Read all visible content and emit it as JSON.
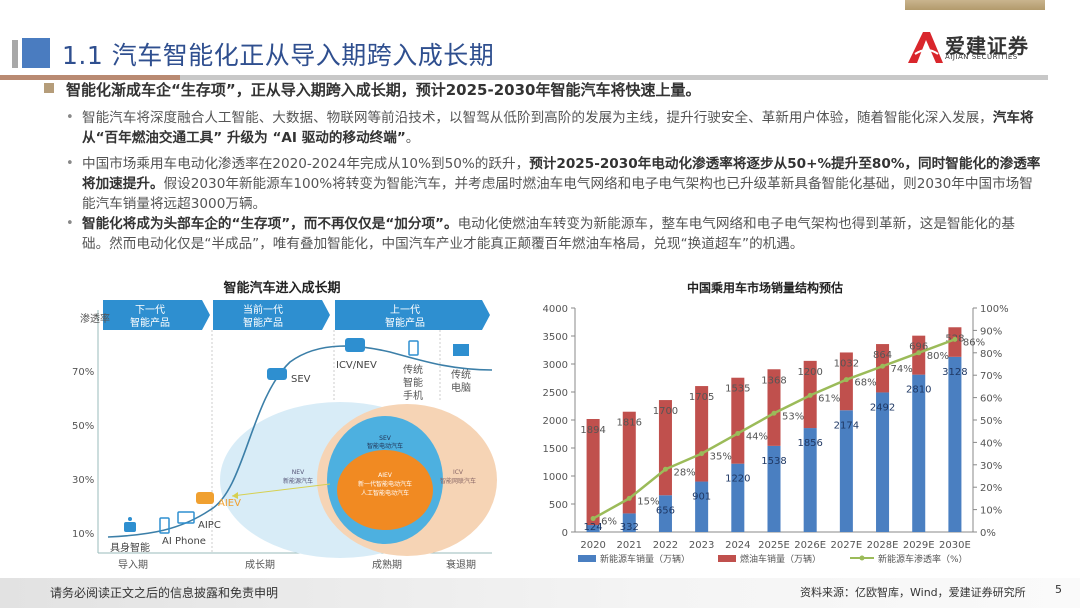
{
  "header": {
    "title": "1.1 汽车智能化正从导入期跨入成长期",
    "logo_cn": "爱建证券",
    "logo_en": "AIJIAN SECURITIES"
  },
  "colors": {
    "title": "#2f4f8f",
    "accent_blue": "#4a7cc0",
    "nev": "#4a7fc1",
    "fuel": "#c0504d",
    "rate": "#9bbb59",
    "gold": "#b59d7a"
  },
  "headline": "智能化渐成车企“生存项”，正从导入期跨入成长期，预计2025-2030年智能汽车将快速上量。",
  "bullets": [
    {
      "plain1": "智能汽车将深度融合人工智能、大数据、物联网等前沿技术，以智驾从低阶到高阶的发展为主线，提升行驶安全、革新用户体验，随着智能化深入发展，",
      "bold1": "汽车将从“百年燃油交通工具” 升级为 “AI 驱动的移动终端”",
      "plain2": "。"
    },
    {
      "plain1": "中国市场乘用车电动化渗透率在2020-2024年完成从10%到50%的跃升，",
      "bold1": "预计2025-2030年电动化渗透率将逐步从50+%提升至80%，同时智能化的渗透率将加速提升。",
      "plain2": "假设2030年新能源车100%将转变为智能汽车，并考虑届时燃油车电气网络和电子电气架构也已升级革新具备智能化基础，则2030年中国市场智能汽车销量将远超3000万辆。"
    },
    {
      "plain1": "",
      "bold1": "智能化将成为头部车企的“生存项”，而不再仅仅是“加分项”。",
      "plain2": "电动化使燃油车转变为新能源车，整车电气网络和电子电气架构也得到革新，这是智能化的基础。然而电动化仅是“半成品”，唯有叠加智能化，中国汽车产业才能真正颠覆百年燃油车格局，兑现“换道超车”的机遇。"
    }
  ],
  "diagram": {
    "title": "智能汽车进入成长期",
    "ylabel": "渗透率",
    "yticks": [
      "70%",
      "50%",
      "30%",
      "10%"
    ],
    "phases": [
      "导入期",
      "成长期",
      "成熟期",
      "衰退期"
    ],
    "banners": [
      [
        "下一代",
        "智能产品"
      ],
      [
        "当前一代",
        "智能产品"
      ],
      [
        "上一代",
        "智能产品"
      ]
    ],
    "points": {
      "embodied": "具身智能",
      "aiphone": "AI Phone",
      "aipc": "AIPC",
      "aiev": "AIEV",
      "sev": "SEV",
      "icvnev": "ICV/NEV",
      "phone": [
        "传统",
        "智能",
        "手机"
      ],
      "pc": [
        "传统",
        "电脑"
      ]
    },
    "venn": {
      "nev": [
        "NEV",
        "新能源汽车"
      ],
      "icv": [
        "ICV",
        "智能网联汽车"
      ],
      "sev": [
        "SEV",
        "智能电动汽车"
      ],
      "aiev": [
        "AIEV",
        "新一代智能电动汽车",
        "人工智能电动汽车"
      ]
    }
  },
  "chart_data": {
    "type": "bar",
    "title": "中国乘用车市场销量结构预估",
    "categories": [
      "2020",
      "2021",
      "2022",
      "2023",
      "2024",
      "2025E",
      "2026E",
      "2027E",
      "2028E",
      "2029E",
      "2030E"
    ],
    "stacked": true,
    "series": [
      {
        "name": "新能源车销量（万辆）",
        "type": "bar",
        "axis": "left",
        "values": [
          124,
          332,
          656,
          901,
          1220,
          1538,
          1856,
          2174,
          2492,
          2810,
          3128
        ]
      },
      {
        "name": "燃油车销量（万辆）",
        "type": "bar",
        "axis": "left",
        "values": [
          1894,
          1816,
          1700,
          1705,
          1535,
          1368,
          1200,
          1032,
          864,
          696,
          528
        ]
      },
      {
        "name": "新能源车渗透率（%）",
        "type": "line",
        "axis": "right",
        "values": [
          6,
          15,
          28,
          35,
          44,
          53,
          61,
          68,
          74,
          80,
          86
        ],
        "labels": [
          "6%",
          "15%",
          "28%",
          "35%",
          "44%",
          "53%",
          "61%",
          "68%",
          "74%",
          "80%",
          "86%"
        ]
      }
    ],
    "ylim": [
      0,
      4000
    ],
    "yticks": [
      "0",
      "500",
      "1000",
      "1500",
      "2000",
      "2500",
      "3000",
      "3500",
      "4000"
    ],
    "y2lim": [
      0,
      100
    ],
    "y2ticks": [
      "0%",
      "10%",
      "20%",
      "30%",
      "40%",
      "50%",
      "60%",
      "70%",
      "80%",
      "90%",
      "100%"
    ],
    "legend": "bottom"
  },
  "footer": {
    "disclaimer": "请务必阅读正文之后的信息披露和免责申明",
    "source": "资料来源：亿欧智库，Wind，爱建证券研究所",
    "page": "5"
  }
}
